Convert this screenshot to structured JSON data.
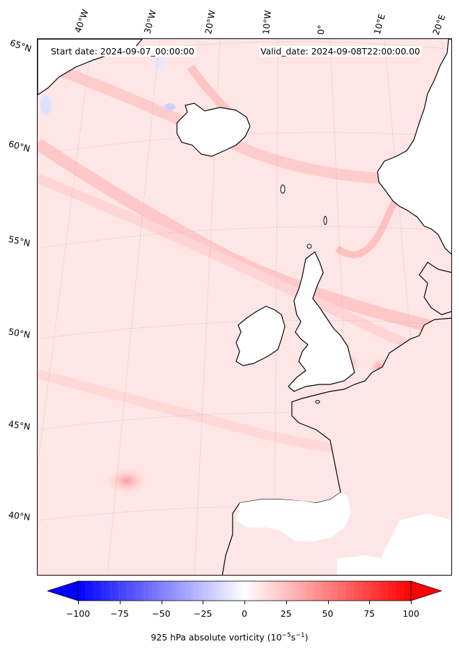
{
  "header": {
    "start_date": "Start date: 2024-09-07_00:00:00",
    "valid_date": "Valid_date: 2024-09-08T22:00:00.00"
  },
  "longitude_labels": [
    "40°W",
    "30°W",
    "20°W",
    "10°W",
    "0°",
    "10°E",
    "20°E"
  ],
  "latitude_labels": [
    "65°N",
    "60°N",
    "55°N",
    "50°N",
    "45°N",
    "40°N"
  ],
  "colorbar": {
    "title": "925 hPa absolute vorticity (10",
    "title_exp": "−5",
    "title_unit": "s",
    "title_exp2": "−1",
    "title_close": ")",
    "ticks": [
      "−100",
      "−75",
      "−50",
      "−25",
      "0",
      "25",
      "50",
      "75",
      "100"
    ],
    "min": -100,
    "max": 100,
    "colormap": "bwr",
    "extend": "both"
  },
  "colors": {
    "negative": "#0000ff",
    "zero": "#ffffff",
    "positive": "#ff0000",
    "background_field": "#ffe3e3",
    "coastline": "#000000"
  }
}
